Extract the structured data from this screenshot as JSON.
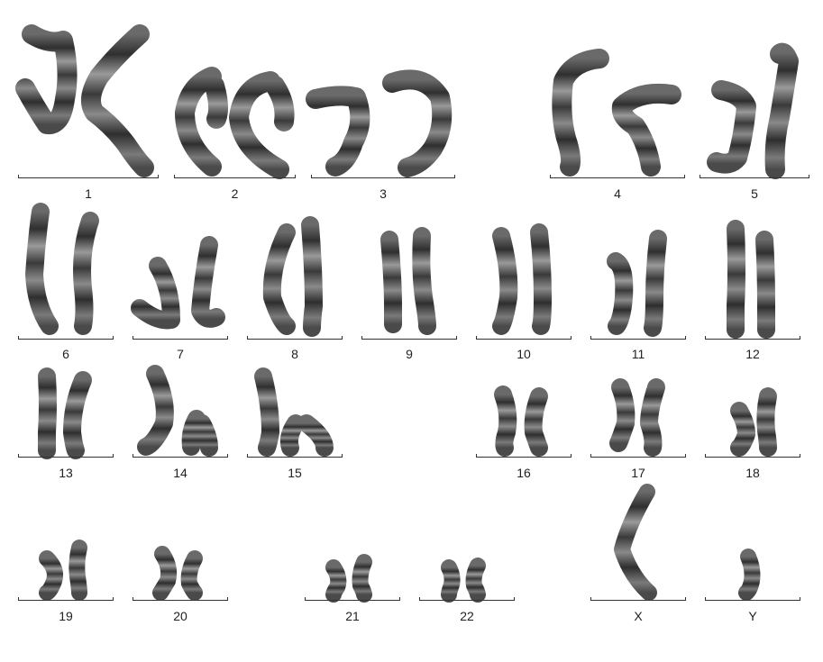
{
  "colors": {
    "chromosome_dark": "#3a3a3a",
    "chromosome_light": "#b8b8b8",
    "rule": "#333333",
    "label": "#222222"
  },
  "pairs": [
    {
      "label": "1"
    },
    {
      "label": "2"
    },
    {
      "label": "3"
    },
    {
      "label": "4"
    },
    {
      "label": "5"
    },
    {
      "label": "6"
    },
    {
      "label": "7"
    },
    {
      "label": "8"
    },
    {
      "label": "9"
    },
    {
      "label": "10"
    },
    {
      "label": "11"
    },
    {
      "label": "12"
    },
    {
      "label": "13"
    },
    {
      "label": "14"
    },
    {
      "label": "15"
    },
    {
      "label": "16"
    },
    {
      "label": "17"
    },
    {
      "label": "18"
    },
    {
      "label": "19"
    },
    {
      "label": "20"
    },
    {
      "label": "21"
    },
    {
      "label": "22"
    },
    {
      "label": "X"
    },
    {
      "label": "Y"
    }
  ]
}
